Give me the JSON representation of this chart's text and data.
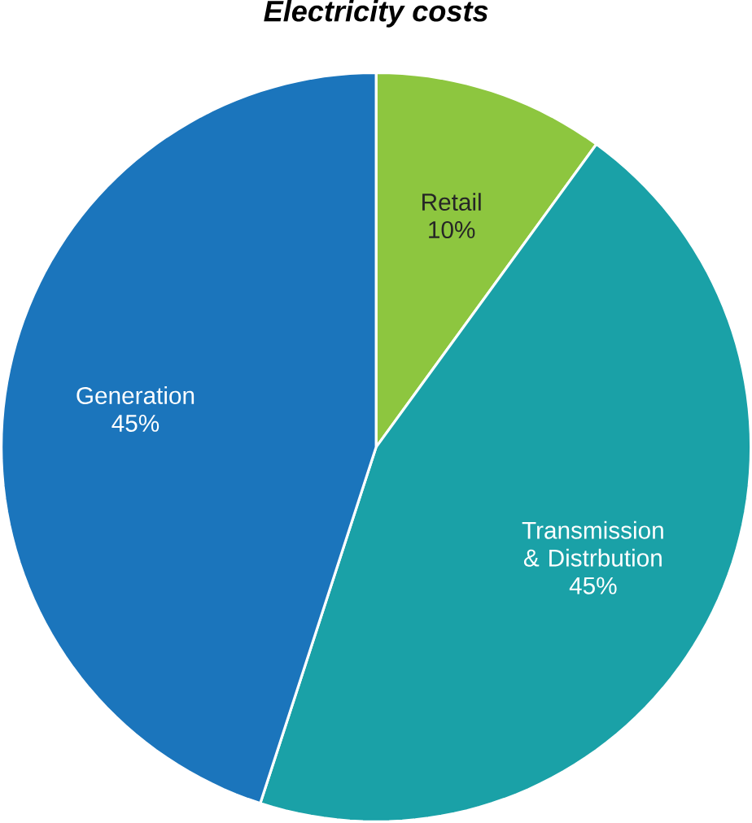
{
  "chart_data": {
    "type": "pie",
    "title": "Electricity costs",
    "categories": [
      "Retail",
      "Transmission & Distrbution",
      "Generation"
    ],
    "values": [
      10,
      45,
      45
    ],
    "value_labels": [
      "10%",
      "45%",
      "45%"
    ],
    "colors": [
      "#8dc63f",
      "#1aa1a7",
      "#1b75bc"
    ]
  }
}
